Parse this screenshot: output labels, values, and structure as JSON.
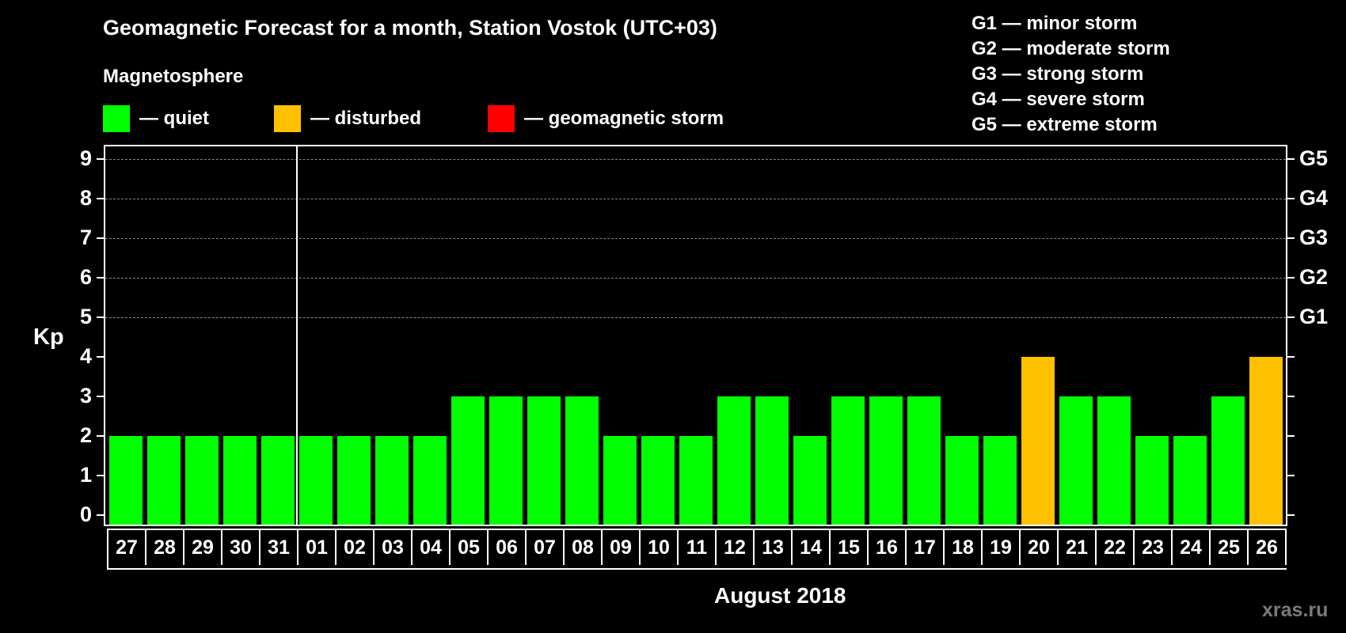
{
  "header": {
    "title": "Geomagnetic Forecast for a month, Station Vostok (UTC+03)",
    "section": "Magnetosphere",
    "legend": [
      {
        "label": "— quiet",
        "color": "#00ff00"
      },
      {
        "label": "— disturbed",
        "color": "#ffc000"
      },
      {
        "label": "— geomagnetic storm",
        "color": "#ff0000"
      }
    ],
    "g_scale": [
      "G1 — minor storm",
      "G2 — moderate storm",
      "G3 — strong storm",
      "G4 — severe storm",
      "G5 — extreme storm"
    ]
  },
  "watermark": "xras.ru",
  "chart_data": {
    "type": "bar",
    "title": "Geomagnetic Forecast for a month, Station Vostok (UTC+03)",
    "xlabel": "August 2018",
    "ylabel": "Kp",
    "ylim": [
      0,
      9
    ],
    "yticks": [
      "0",
      "1",
      "2",
      "3",
      "4",
      "5",
      "6",
      "7",
      "8",
      "9"
    ],
    "right_axis_labels": [
      {
        "y": 5,
        "label": "G1"
      },
      {
        "y": 6,
        "label": "G2"
      },
      {
        "y": 7,
        "label": "G3"
      },
      {
        "y": 8,
        "label": "G4"
      },
      {
        "y": 9,
        "label": "G5"
      }
    ],
    "grid": "dashed horizontal at Kp 5-9",
    "categories": [
      "27",
      "28",
      "29",
      "30",
      "31",
      "01",
      "02",
      "03",
      "04",
      "05",
      "06",
      "07",
      "08",
      "09",
      "10",
      "11",
      "12",
      "13",
      "14",
      "15",
      "16",
      "17",
      "18",
      "19",
      "20",
      "21",
      "22",
      "23",
      "24",
      "25",
      "26"
    ],
    "values": [
      2,
      2,
      2,
      2,
      2,
      2,
      2,
      2,
      2,
      3,
      3,
      3,
      3,
      2,
      2,
      2,
      3,
      3,
      2,
      3,
      3,
      3,
      2,
      2,
      4,
      3,
      3,
      2,
      2,
      3,
      4
    ],
    "status": [
      "quiet",
      "quiet",
      "quiet",
      "quiet",
      "quiet",
      "quiet",
      "quiet",
      "quiet",
      "quiet",
      "quiet",
      "quiet",
      "quiet",
      "quiet",
      "quiet",
      "quiet",
      "quiet",
      "quiet",
      "quiet",
      "quiet",
      "quiet",
      "quiet",
      "quiet",
      "quiet",
      "quiet",
      "disturbed",
      "quiet",
      "quiet",
      "quiet",
      "quiet",
      "quiet",
      "disturbed"
    ],
    "colors": {
      "quiet": "#00ff00",
      "disturbed": "#ffc000",
      "storm": "#ff0000"
    },
    "month_divider_after": "31",
    "legend_position": "top"
  }
}
